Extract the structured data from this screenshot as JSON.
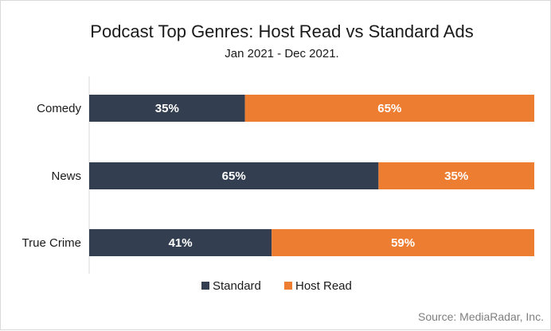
{
  "chart_data": {
    "type": "bar",
    "orientation": "horizontal",
    "stacked": true,
    "title": "Podcast Top Genres: Host Read vs Standard Ads",
    "subtitle": "Jan 2021 - Dec 2021.",
    "categories": [
      "Comedy",
      "News",
      "True Crime"
    ],
    "series": [
      {
        "name": "Standard",
        "values": [
          35,
          65,
          41
        ],
        "labels": [
          "35%",
          "65%",
          "41%"
        ],
        "color": "#333f50"
      },
      {
        "name": "Host Read",
        "values": [
          65,
          35,
          59
        ],
        "labels": [
          "65%",
          "35%",
          "59%"
        ],
        "color": "#ed7d31"
      }
    ],
    "xlim": [
      0,
      100
    ],
    "grid": false,
    "legend_position": "bottom",
    "source": "Source: MediaRadar, Inc."
  }
}
